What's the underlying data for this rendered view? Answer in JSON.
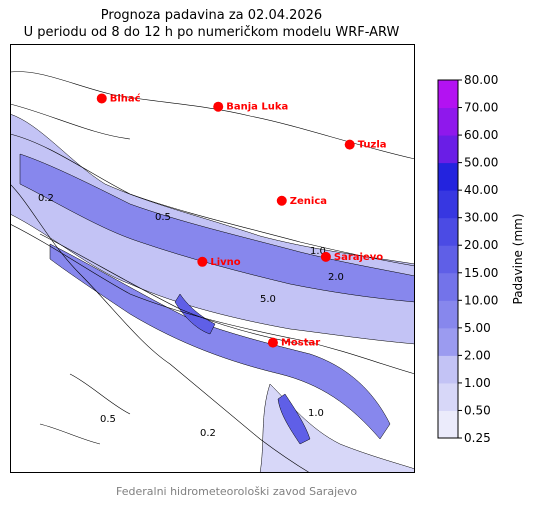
{
  "title": "Prognoza padavina za 02.04.2026",
  "subtitle": "U periodu od 8 do 12 h po numeričkom modelu WRF-ARW",
  "footer": "Federalni hidrometeorološki zavod Sarajevo",
  "colorbar": {
    "label": "Padavine (mm)",
    "levels": [
      "0.25",
      "0.50",
      "1.00",
      "2.00",
      "5.00",
      "10.00",
      "15.00",
      "20.00",
      "30.00",
      "40.00",
      "50.00",
      "60.00",
      "70.00",
      "80.00"
    ],
    "colors": [
      "#ebebfb",
      "#d7d7f8",
      "#c3c3f5",
      "#9b9bf0",
      "#8787ed",
      "#7373ea",
      "#5f5fe7",
      "#4b4be4",
      "#3737e1",
      "#2323de",
      "#6a1ee6",
      "#8f18ec",
      "#b312f2"
    ]
  },
  "chart_data": {
    "type": "contour map",
    "title": "Prognoza padavina za 02.04.2026",
    "subtitle": "U periodu od 8 do 12 h po numeričkom modelu WRF-ARW",
    "colorbar_label": "Padavine (mm)",
    "colorbar_ticks": [
      0.25,
      0.5,
      1,
      2,
      5,
      10,
      15,
      20,
      30,
      40,
      50,
      60,
      70,
      80
    ],
    "contour_labels": [
      "0.2",
      "0.5",
      "1.0",
      "2.0",
      "5.0"
    ],
    "cities": [
      {
        "name": "Bihać",
        "lon": 15.87,
        "lat": 44.82
      },
      {
        "name": "Banja Luka",
        "lon": 17.19,
        "lat": 44.77
      },
      {
        "name": "Tuzla",
        "lon": 18.68,
        "lat": 44.54
      },
      {
        "name": "Zenica",
        "lon": 17.91,
        "lat": 44.2
      },
      {
        "name": "Sarajevo",
        "lon": 18.41,
        "lat": 43.86
      },
      {
        "name": "Livno",
        "lon": 17.01,
        "lat": 43.83
      },
      {
        "name": "Mostar",
        "lon": 17.81,
        "lat": 43.34
      }
    ],
    "city_color": "#ff0000"
  }
}
